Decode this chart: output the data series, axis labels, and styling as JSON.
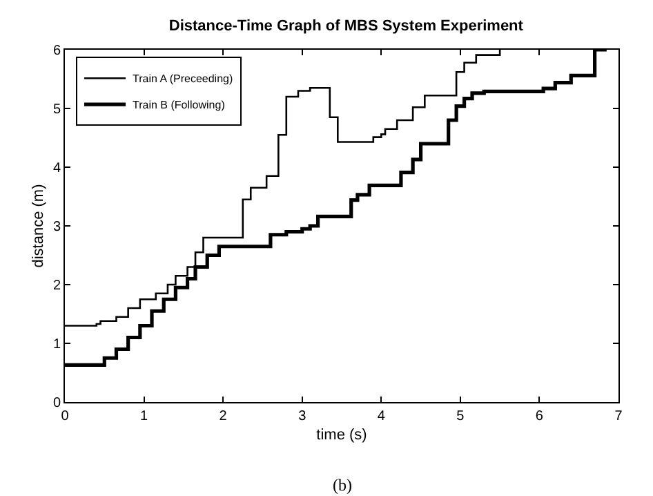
{
  "chart_data": {
    "type": "step",
    "title": "Distance-Time Graph of MBS System Experiment",
    "xlabel": "time (s)",
    "ylabel": "distance (m)",
    "xlim": [
      0,
      7
    ],
    "ylim": [
      0,
      6
    ],
    "xticks": [
      0,
      1,
      2,
      3,
      4,
      5,
      6,
      7
    ],
    "yticks": [
      0,
      1,
      2,
      3,
      4,
      5,
      6
    ],
    "legend": "top left",
    "marker": "none",
    "line_style": "solid",
    "annotations": [
      "(b)"
    ],
    "series": [
      {
        "name": "Train A (Preceeding)",
        "color": "#000000",
        "x": [
          0,
          0.4,
          0.45,
          0.65,
          0.8,
          0.95,
          1.15,
          1.3,
          1.4,
          1.55,
          1.65,
          1.75,
          2.25,
          2.35,
          2.55,
          2.7,
          2.8,
          2.95,
          3.1,
          3.35,
          3.45,
          3.9,
          4.0,
          4.05,
          4.2,
          4.4,
          4.55,
          4.95,
          5.05,
          5.2,
          5.5
        ],
        "values": [
          1.3,
          1.33,
          1.38,
          1.45,
          1.6,
          1.75,
          1.85,
          2.0,
          2.15,
          2.3,
          2.55,
          2.8,
          3.45,
          3.65,
          3.85,
          4.55,
          5.2,
          5.3,
          5.35,
          4.85,
          4.43,
          4.51,
          4.56,
          4.65,
          4.8,
          5.02,
          5.22,
          5.62,
          5.78,
          5.91,
          6.0
        ]
      },
      {
        "name": "Train B (Following)",
        "color": "#000000",
        "x": [
          0,
          0.5,
          0.65,
          0.8,
          0.95,
          1.1,
          1.25,
          1.4,
          1.55,
          1.65,
          1.8,
          1.95,
          2.6,
          2.8,
          3.0,
          3.1,
          3.2,
          3.62,
          3.7,
          3.85,
          4.25,
          4.4,
          4.5,
          4.85,
          4.95,
          5.05,
          5.15,
          5.3,
          6.05,
          6.2,
          6.4,
          6.7,
          6.85
        ],
        "values": [
          0.63,
          0.75,
          0.9,
          1.1,
          1.3,
          1.55,
          1.75,
          1.95,
          2.1,
          2.3,
          2.5,
          2.65,
          2.85,
          2.9,
          2.95,
          3.0,
          3.16,
          3.44,
          3.53,
          3.69,
          3.91,
          4.13,
          4.4,
          4.8,
          5.04,
          5.17,
          5.26,
          5.29,
          5.34,
          5.44,
          5.56,
          6.0,
          6.0
        ]
      }
    ]
  }
}
